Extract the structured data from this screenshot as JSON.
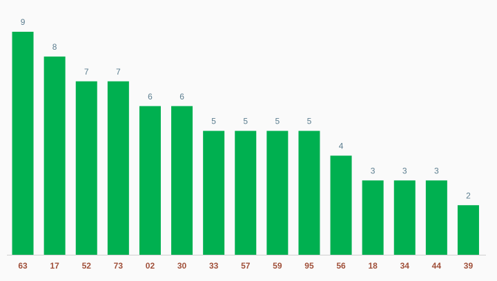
{
  "chart_data": {
    "type": "bar",
    "categories": [
      "63",
      "17",
      "52",
      "73",
      "02",
      "30",
      "33",
      "57",
      "59",
      "95",
      "56",
      "18",
      "34",
      "44",
      "39"
    ],
    "values": [
      9,
      8,
      7,
      7,
      6,
      6,
      5,
      5,
      5,
      5,
      4,
      3,
      3,
      3,
      2
    ],
    "color": "#00b050"
  }
}
